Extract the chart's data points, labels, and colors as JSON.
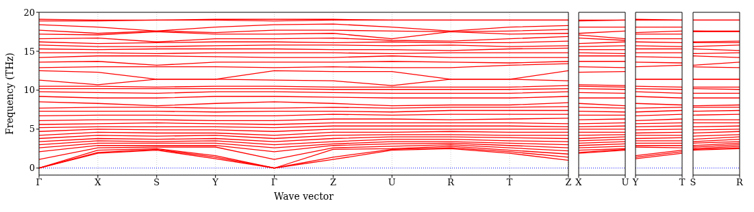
{
  "chart_data": [
    {
      "type": "line",
      "xlabel": "Wave vector",
      "ylabel": "Frequency (THz)",
      "categories": [
        "Γ",
        "X",
        "S",
        "Y",
        "Γ",
        "Z",
        "U",
        "R",
        "T",
        "Z"
      ],
      "ylim": [
        -0.9,
        20
      ],
      "yticks": [
        0,
        5,
        10,
        15,
        20
      ],
      "grid": "x",
      "ref_lines": [
        {
          "axis": "y",
          "value": 0,
          "color": "#0000ff",
          "line_style": "dotted"
        }
      ],
      "series": [
        {
          "color": "#ff0000",
          "values": [
            0,
            1.9,
            2.3,
            1.2,
            0,
            1.1,
            2.3,
            2.5,
            1.9,
            1.0
          ]
        },
        {
          "color": "#ff0000",
          "values": [
            0,
            2.0,
            2.4,
            1.4,
            0,
            1.4,
            2.4,
            2.6,
            2.1,
            1.4
          ]
        },
        {
          "color": "#ff0000",
          "values": [
            0,
            2.3,
            2.5,
            1.6,
            0,
            2.4,
            2.5,
            2.8,
            2.3,
            1.8
          ]
        },
        {
          "color": "#ff0000",
          "values": [
            1.1,
            2.6,
            2.7,
            2.7,
            1.1,
            2.6,
            2.8,
            3.0,
            2.6,
            2.2
          ]
        },
        {
          "color": "#ff0000",
          "values": [
            2.1,
            2.9,
            2.9,
            2.9,
            2.1,
            2.9,
            3.1,
            3.2,
            2.9,
            2.6
          ]
        },
        {
          "color": "#ff0000",
          "values": [
            2.6,
            3.2,
            3.2,
            3.2,
            2.6,
            3.1,
            3.4,
            3.4,
            3.2,
            3.0
          ]
        },
        {
          "color": "#ff0000",
          "values": [
            3.0,
            3.5,
            3.4,
            3.5,
            3.0,
            3.4,
            3.7,
            3.7,
            3.5,
            3.4
          ]
        },
        {
          "color": "#ff0000",
          "values": [
            3.4,
            3.8,
            3.7,
            3.8,
            3.4,
            3.8,
            4.0,
            4.0,
            3.9,
            3.8
          ]
        },
        {
          "color": "#ff0000",
          "values": [
            3.8,
            4.2,
            4.1,
            4.2,
            3.8,
            4.2,
            4.3,
            4.3,
            4.2,
            4.2
          ]
        },
        {
          "color": "#ff0000",
          "values": [
            4.2,
            4.6,
            4.5,
            4.5,
            4.2,
            4.6,
            4.6,
            4.7,
            4.6,
            4.6
          ]
        },
        {
          "color": "#ff0000",
          "values": [
            4.7,
            5.0,
            4.9,
            4.9,
            4.7,
            5.0,
            5.0,
            5.0,
            5.0,
            5.0
          ]
        },
        {
          "color": "#ff0000",
          "values": [
            5.2,
            5.3,
            5.3,
            5.3,
            5.2,
            5.4,
            5.4,
            5.4,
            5.4,
            5.3
          ]
        },
        {
          "color": "#ff0000",
          "values": [
            5.6,
            5.7,
            5.8,
            5.7,
            5.6,
            5.8,
            5.8,
            5.8,
            5.8,
            5.7
          ]
        },
        {
          "color": "#ff0000",
          "values": [
            6.1,
            6.2,
            6.2,
            6.1,
            6.1,
            6.3,
            6.3,
            6.2,
            6.3,
            6.4
          ]
        },
        {
          "color": "#ff0000",
          "values": [
            6.7,
            6.8,
            6.8,
            6.7,
            6.7,
            6.9,
            6.8,
            6.9,
            6.9,
            6.9
          ]
        },
        {
          "color": "#ff0000",
          "values": [
            7.3,
            7.3,
            7.3,
            7.2,
            7.3,
            7.3,
            7.2,
            7.4,
            7.4,
            7.4
          ]
        },
        {
          "color": "#ff0000",
          "values": [
            7.7,
            7.8,
            7.8,
            7.7,
            7.7,
            7.8,
            7.7,
            7.8,
            7.8,
            7.9
          ]
        },
        {
          "color": "#ff0000",
          "values": [
            8.5,
            8.3,
            8.0,
            8.3,
            8.5,
            8.3,
            8.0,
            8.1,
            8.1,
            8.4
          ]
        },
        {
          "color": "#ff0000",
          "values": [
            9.2,
            9.0,
            9.0,
            9.2,
            9.2,
            9.1,
            9.0,
            9.0,
            9.0,
            9.2
          ]
        },
        {
          "color": "#ff0000",
          "values": [
            9.8,
            9.7,
            9.6,
            9.8,
            9.8,
            9.7,
            9.6,
            9.6,
            9.6,
            9.8
          ]
        },
        {
          "color": "#ff0000",
          "values": [
            10.2,
            10.2,
            10.2,
            10.2,
            10.2,
            10.1,
            10.1,
            10.1,
            10.1,
            10.2
          ]
        },
        {
          "color": "#ff0000",
          "values": [
            10.5,
            10.5,
            10.4,
            10.5,
            10.5,
            10.4,
            10.4,
            10.4,
            10.4,
            10.6
          ]
        },
        {
          "color": "#ff0000",
          "values": [
            11.3,
            10.7,
            11.4,
            11.4,
            11.3,
            11.2,
            10.6,
            11.4,
            11.4,
            11.2
          ]
        },
        {
          "color": "#ff0000",
          "values": [
            12.5,
            12.3,
            11.4,
            11.4,
            12.5,
            12.4,
            12.4,
            11.4,
            11.4,
            12.5
          ]
        },
        {
          "color": "#ff0000",
          "values": [
            12.9,
            13.0,
            13.0,
            13.0,
            12.9,
            13.0,
            12.9,
            12.9,
            13.2,
            13.4
          ]
        },
        {
          "color": "#ff0000",
          "values": [
            13.6,
            13.7,
            13.2,
            13.6,
            13.6,
            13.6,
            13.7,
            13.6,
            13.5,
            13.7
          ]
        },
        {
          "color": "#ff0000",
          "values": [
            14.2,
            14.4,
            14.4,
            14.3,
            14.2,
            14.2,
            14.4,
            14.2,
            14.2,
            14.2
          ]
        },
        {
          "color": "#ff0000",
          "values": [
            14.8,
            14.8,
            14.7,
            14.8,
            14.8,
            14.8,
            14.7,
            14.8,
            14.8,
            14.8
          ]
        },
        {
          "color": "#ff0000",
          "values": [
            15.3,
            15.2,
            15.3,
            15.3,
            15.3,
            15.2,
            15.2,
            15.1,
            15.3,
            15.4
          ]
        },
        {
          "color": "#ff0000",
          "values": [
            15.8,
            15.6,
            15.6,
            15.7,
            15.8,
            15.8,
            15.7,
            15.8,
            15.6,
            15.7
          ]
        },
        {
          "color": "#ff0000",
          "values": [
            16.2,
            16.0,
            16.1,
            16.2,
            16.2,
            16.1,
            16.2,
            16.1,
            16.1,
            16.3
          ]
        },
        {
          "color": "#ff0000",
          "values": [
            16.6,
            16.7,
            16.2,
            16.6,
            16.6,
            16.7,
            16.4,
            16.3,
            16.6,
            16.9
          ]
        },
        {
          "color": "#ff0000",
          "values": [
            17.2,
            17.1,
            17.5,
            17.2,
            17.2,
            17.3,
            16.6,
            17.5,
            17.2,
            17.3
          ]
        },
        {
          "color": "#ff0000",
          "values": [
            17.7,
            17.3,
            17.6,
            17.4,
            17.7,
            17.7,
            17.6,
            17.5,
            17.6,
            17.8
          ]
        },
        {
          "color": "#ff0000",
          "values": [
            18.4,
            18.1,
            17.6,
            18.1,
            18.4,
            18.5,
            18.1,
            17.6,
            18.1,
            18.3
          ]
        },
        {
          "color": "#ff0000",
          "values": [
            18.9,
            18.9,
            19.0,
            19.0,
            18.9,
            19.0,
            19.0,
            19.0,
            19.0,
            19.0
          ]
        },
        {
          "color": "#ff0000",
          "values": [
            19.1,
            19.0,
            19.0,
            19.1,
            19.1,
            19.1,
            19.0,
            19.0,
            19.0,
            19.0
          ]
        }
      ]
    },
    {
      "type": "line",
      "categories": [
        "X",
        "U"
      ],
      "ylim": [
        -0.9,
        20
      ],
      "yticks": [
        0,
        5,
        10,
        15,
        20
      ],
      "tick_labels": "x",
      "ref_lines": [
        {
          "axis": "y",
          "value": 0,
          "color": "#0000ff",
          "line_style": "dotted"
        }
      ],
      "series": [
        {
          "color": "#ff0000",
          "values": [
            1.9,
            2.3
          ]
        },
        {
          "color": "#ff0000",
          "values": [
            2.0,
            2.4
          ]
        },
        {
          "color": "#ff0000",
          "values": [
            2.3,
            2.5
          ]
        },
        {
          "color": "#ff0000",
          "values": [
            2.6,
            2.8
          ]
        },
        {
          "color": "#ff0000",
          "values": [
            2.9,
            3.1
          ]
        },
        {
          "color": "#ff0000",
          "values": [
            3.2,
            3.4
          ]
        },
        {
          "color": "#ff0000",
          "values": [
            3.5,
            3.7
          ]
        },
        {
          "color": "#ff0000",
          "values": [
            3.8,
            4.0
          ]
        },
        {
          "color": "#ff0000",
          "values": [
            4.2,
            4.3
          ]
        },
        {
          "color": "#ff0000",
          "values": [
            4.6,
            4.6
          ]
        },
        {
          "color": "#ff0000",
          "values": [
            5.0,
            5.0
          ]
        },
        {
          "color": "#ff0000",
          "values": [
            5.3,
            5.4
          ]
        },
        {
          "color": "#ff0000",
          "values": [
            5.7,
            5.8
          ]
        },
        {
          "color": "#ff0000",
          "values": [
            6.2,
            6.3
          ]
        },
        {
          "color": "#ff0000",
          "values": [
            6.8,
            6.8
          ]
        },
        {
          "color": "#ff0000",
          "values": [
            7.3,
            7.2
          ]
        },
        {
          "color": "#ff0000",
          "values": [
            7.8,
            7.7
          ]
        },
        {
          "color": "#ff0000",
          "values": [
            8.3,
            8.0
          ]
        },
        {
          "color": "#ff0000",
          "values": [
            9.0,
            9.0
          ]
        },
        {
          "color": "#ff0000",
          "values": [
            9.7,
            9.6
          ]
        },
        {
          "color": "#ff0000",
          "values": [
            10.2,
            10.1
          ]
        },
        {
          "color": "#ff0000",
          "values": [
            10.5,
            10.4
          ]
        },
        {
          "color": "#ff0000",
          "values": [
            10.7,
            10.6
          ]
        },
        {
          "color": "#ff0000",
          "values": [
            12.3,
            12.4
          ]
        },
        {
          "color": "#ff0000",
          "values": [
            13.0,
            12.9
          ]
        },
        {
          "color": "#ff0000",
          "values": [
            13.7,
            13.7
          ]
        },
        {
          "color": "#ff0000",
          "values": [
            14.4,
            14.4
          ]
        },
        {
          "color": "#ff0000",
          "values": [
            14.8,
            14.7
          ]
        },
        {
          "color": "#ff0000",
          "values": [
            15.2,
            15.2
          ]
        },
        {
          "color": "#ff0000",
          "values": [
            15.6,
            15.7
          ]
        },
        {
          "color": "#ff0000",
          "values": [
            16.0,
            16.2
          ]
        },
        {
          "color": "#ff0000",
          "values": [
            16.7,
            16.4
          ]
        },
        {
          "color": "#ff0000",
          "values": [
            17.1,
            16.6
          ]
        },
        {
          "color": "#ff0000",
          "values": [
            17.3,
            17.6
          ]
        },
        {
          "color": "#ff0000",
          "values": [
            18.1,
            18.1
          ]
        },
        {
          "color": "#ff0000",
          "values": [
            18.9,
            19.0
          ]
        },
        {
          "color": "#ff0000",
          "values": [
            19.0,
            19.0
          ]
        }
      ]
    },
    {
      "type": "line",
      "categories": [
        "Y",
        "T"
      ],
      "ylim": [
        -0.9,
        20
      ],
      "yticks": [
        0,
        5,
        10,
        15,
        20
      ],
      "tick_labels": "x",
      "ref_lines": [
        {
          "axis": "y",
          "value": 0,
          "color": "#0000ff",
          "line_style": "dotted"
        }
      ],
      "series": [
        {
          "color": "#ff0000",
          "values": [
            1.2,
            1.9
          ]
        },
        {
          "color": "#ff0000",
          "values": [
            1.4,
            2.1
          ]
        },
        {
          "color": "#ff0000",
          "values": [
            1.6,
            2.3
          ]
        },
        {
          "color": "#ff0000",
          "values": [
            2.7,
            2.6
          ]
        },
        {
          "color": "#ff0000",
          "values": [
            2.9,
            2.9
          ]
        },
        {
          "color": "#ff0000",
          "values": [
            3.2,
            3.2
          ]
        },
        {
          "color": "#ff0000",
          "values": [
            3.5,
            3.5
          ]
        },
        {
          "color": "#ff0000",
          "values": [
            3.8,
            3.9
          ]
        },
        {
          "color": "#ff0000",
          "values": [
            4.2,
            4.2
          ]
        },
        {
          "color": "#ff0000",
          "values": [
            4.5,
            4.6
          ]
        },
        {
          "color": "#ff0000",
          "values": [
            4.9,
            5.0
          ]
        },
        {
          "color": "#ff0000",
          "values": [
            5.3,
            5.4
          ]
        },
        {
          "color": "#ff0000",
          "values": [
            5.7,
            5.8
          ]
        },
        {
          "color": "#ff0000",
          "values": [
            6.1,
            6.3
          ]
        },
        {
          "color": "#ff0000",
          "values": [
            6.7,
            6.9
          ]
        },
        {
          "color": "#ff0000",
          "values": [
            7.2,
            7.4
          ]
        },
        {
          "color": "#ff0000",
          "values": [
            7.7,
            7.8
          ]
        },
        {
          "color": "#ff0000",
          "values": [
            8.3,
            8.1
          ]
        },
        {
          "color": "#ff0000",
          "values": [
            9.2,
            9.0
          ]
        },
        {
          "color": "#ff0000",
          "values": [
            9.8,
            9.6
          ]
        },
        {
          "color": "#ff0000",
          "values": [
            10.2,
            10.1
          ]
        },
        {
          "color": "#ff0000",
          "values": [
            10.5,
            10.4
          ]
        },
        {
          "color": "#ff0000",
          "values": [
            11.4,
            11.4
          ]
        },
        {
          "color": "#ff0000",
          "values": [
            11.4,
            11.4
          ]
        },
        {
          "color": "#ff0000",
          "values": [
            13.0,
            13.2
          ]
        },
        {
          "color": "#ff0000",
          "values": [
            13.6,
            13.5
          ]
        },
        {
          "color": "#ff0000",
          "values": [
            14.3,
            14.2
          ]
        },
        {
          "color": "#ff0000",
          "values": [
            14.8,
            14.8
          ]
        },
        {
          "color": "#ff0000",
          "values": [
            15.3,
            15.3
          ]
        },
        {
          "color": "#ff0000",
          "values": [
            15.7,
            15.6
          ]
        },
        {
          "color": "#ff0000",
          "values": [
            16.2,
            16.1
          ]
        },
        {
          "color": "#ff0000",
          "values": [
            16.6,
            16.6
          ]
        },
        {
          "color": "#ff0000",
          "values": [
            17.2,
            17.2
          ]
        },
        {
          "color": "#ff0000",
          "values": [
            17.4,
            17.6
          ]
        },
        {
          "color": "#ff0000",
          "values": [
            18.1,
            18.1
          ]
        },
        {
          "color": "#ff0000",
          "values": [
            19.0,
            19.0
          ]
        },
        {
          "color": "#ff0000",
          "values": [
            19.1,
            19.0
          ]
        }
      ]
    },
    {
      "type": "line",
      "categories": [
        "S",
        "R"
      ],
      "ylim": [
        -0.9,
        20
      ],
      "yticks": [
        0,
        5,
        10,
        15,
        20
      ],
      "tick_labels": "x",
      "ref_lines": [
        {
          "axis": "y",
          "value": 0,
          "color": "#0000ff",
          "line_style": "dotted"
        }
      ],
      "series": [
        {
          "color": "#ff0000",
          "values": [
            2.3,
            2.5
          ]
        },
        {
          "color": "#ff0000",
          "values": [
            2.4,
            2.6
          ]
        },
        {
          "color": "#ff0000",
          "values": [
            2.5,
            2.8
          ]
        },
        {
          "color": "#ff0000",
          "values": [
            2.7,
            3.0
          ]
        },
        {
          "color": "#ff0000",
          "values": [
            2.9,
            3.2
          ]
        },
        {
          "color": "#ff0000",
          "values": [
            3.2,
            3.4
          ]
        },
        {
          "color": "#ff0000",
          "values": [
            3.4,
            3.7
          ]
        },
        {
          "color": "#ff0000",
          "values": [
            3.7,
            4.0
          ]
        },
        {
          "color": "#ff0000",
          "values": [
            4.1,
            4.3
          ]
        },
        {
          "color": "#ff0000",
          "values": [
            4.5,
            4.7
          ]
        },
        {
          "color": "#ff0000",
          "values": [
            4.9,
            5.0
          ]
        },
        {
          "color": "#ff0000",
          "values": [
            5.3,
            5.4
          ]
        },
        {
          "color": "#ff0000",
          "values": [
            5.8,
            5.8
          ]
        },
        {
          "color": "#ff0000",
          "values": [
            6.2,
            6.2
          ]
        },
        {
          "color": "#ff0000",
          "values": [
            6.8,
            6.9
          ]
        },
        {
          "color": "#ff0000",
          "values": [
            7.3,
            7.4
          ]
        },
        {
          "color": "#ff0000",
          "values": [
            7.8,
            7.8
          ]
        },
        {
          "color": "#ff0000",
          "values": [
            8.0,
            8.1
          ]
        },
        {
          "color": "#ff0000",
          "values": [
            9.0,
            9.0
          ]
        },
        {
          "color": "#ff0000",
          "values": [
            9.6,
            9.6
          ]
        },
        {
          "color": "#ff0000",
          "values": [
            10.2,
            10.1
          ]
        },
        {
          "color": "#ff0000",
          "values": [
            10.4,
            10.4
          ]
        },
        {
          "color": "#ff0000",
          "values": [
            11.4,
            11.4
          ]
        },
        {
          "color": "#ff0000",
          "values": [
            11.4,
            11.4
          ]
        },
        {
          "color": "#ff0000",
          "values": [
            13.0,
            12.9
          ]
        },
        {
          "color": "#ff0000",
          "values": [
            13.2,
            13.6
          ]
        },
        {
          "color": "#ff0000",
          "values": [
            14.4,
            14.2
          ]
        },
        {
          "color": "#ff0000",
          "values": [
            14.7,
            14.8
          ]
        },
        {
          "color": "#ff0000",
          "values": [
            15.3,
            15.1
          ]
        },
        {
          "color": "#ff0000",
          "values": [
            15.6,
            15.8
          ]
        },
        {
          "color": "#ff0000",
          "values": [
            16.1,
            16.1
          ]
        },
        {
          "color": "#ff0000",
          "values": [
            16.2,
            16.3
          ]
        },
        {
          "color": "#ff0000",
          "values": [
            17.5,
            17.5
          ]
        },
        {
          "color": "#ff0000",
          "values": [
            17.6,
            17.5
          ]
        },
        {
          "color": "#ff0000",
          "values": [
            17.6,
            17.6
          ]
        },
        {
          "color": "#ff0000",
          "values": [
            19.0,
            19.0
          ]
        },
        {
          "color": "#ff0000",
          "values": [
            19.0,
            19.0
          ]
        }
      ]
    }
  ]
}
